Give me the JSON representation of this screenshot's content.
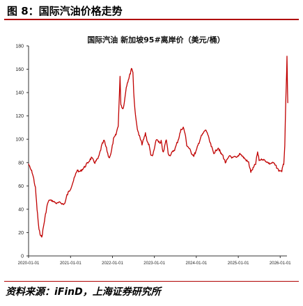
{
  "header": {
    "figure_label": "图 8：国际汽油价格走势"
  },
  "footer": {
    "source": "资料来源：iFinD，上海证券研究所"
  },
  "chart_data": {
    "type": "line",
    "title": "国际汽油 新加坡95#离岸价（美元/桶）",
    "xlabel": "",
    "ylabel": "",
    "grid": false,
    "legend": "none",
    "xlim": [
      "2020-01-01",
      "2026-03-01"
    ],
    "ylim": [
      0,
      180
    ],
    "yticks": [
      0,
      20,
      40,
      60,
      80,
      100,
      120,
      140,
      160,
      180
    ],
    "xticks": [
      "2020-01-01",
      "2021-01-01",
      "2022-01-01",
      "2023-01-01",
      "2024-01-01",
      "2025-01-01",
      "2026-01-01"
    ],
    "series": [
      {
        "color": "#c00000",
        "points": [
          [
            "2020-01-01",
            79
          ],
          [
            "2020-01-15",
            75
          ],
          [
            "2020-02-01",
            72
          ],
          [
            "2020-02-15",
            66
          ],
          [
            "2020-03-01",
            58
          ],
          [
            "2020-03-15",
            40
          ],
          [
            "2020-04-01",
            22
          ],
          [
            "2020-04-15",
            18
          ],
          [
            "2020-04-25",
            16
          ],
          [
            "2020-05-10",
            25
          ],
          [
            "2020-06-01",
            38
          ],
          [
            "2020-06-15",
            45
          ],
          [
            "2020-07-01",
            48
          ],
          [
            "2020-08-01",
            47
          ],
          [
            "2020-09-01",
            45
          ],
          [
            "2020-10-01",
            46
          ],
          [
            "2020-11-01",
            44
          ],
          [
            "2020-11-15",
            46
          ],
          [
            "2020-12-01",
            52
          ],
          [
            "2021-01-01",
            58
          ],
          [
            "2021-02-01",
            66
          ],
          [
            "2021-03-01",
            74
          ],
          [
            "2021-03-15",
            72
          ],
          [
            "2021-04-01",
            73
          ],
          [
            "2021-05-01",
            76
          ],
          [
            "2021-06-01",
            80
          ],
          [
            "2021-07-01",
            84
          ],
          [
            "2021-08-01",
            80
          ],
          [
            "2021-09-01",
            84
          ],
          [
            "2021-10-01",
            95
          ],
          [
            "2021-10-20",
            99
          ],
          [
            "2021-11-15",
            90
          ],
          [
            "2021-12-01",
            84
          ],
          [
            "2021-12-20",
            88
          ],
          [
            "2022-01-10",
            100
          ],
          [
            "2022-02-01",
            104
          ],
          [
            "2022-02-20",
            112
          ],
          [
            "2022-03-08",
            153
          ],
          [
            "2022-03-15",
            130
          ],
          [
            "2022-04-01",
            126
          ],
          [
            "2022-04-15",
            132
          ],
          [
            "2022-05-01",
            145
          ],
          [
            "2022-05-15",
            150
          ],
          [
            "2022-06-01",
            155
          ],
          [
            "2022-06-15",
            161
          ],
          [
            "2022-06-28",
            158
          ],
          [
            "2022-07-05",
            140
          ],
          [
            "2022-07-20",
            120
          ],
          [
            "2022-08-01",
            112
          ],
          [
            "2022-08-15",
            105
          ],
          [
            "2022-09-01",
            100
          ],
          [
            "2022-09-15",
            96
          ],
          [
            "2022-10-01",
            100
          ],
          [
            "2022-10-15",
            105
          ],
          [
            "2022-11-01",
            98
          ],
          [
            "2022-11-15",
            95
          ],
          [
            "2022-12-01",
            87
          ],
          [
            "2022-12-15",
            85
          ],
          [
            "2023-01-01",
            92
          ],
          [
            "2023-01-20",
            100
          ],
          [
            "2023-02-01",
            99
          ],
          [
            "2023-02-20",
            96
          ],
          [
            "2023-03-01",
            98
          ],
          [
            "2023-03-20",
            88
          ],
          [
            "2023-04-01",
            94
          ],
          [
            "2023-04-15",
            100
          ],
          [
            "2023-05-01",
            88
          ],
          [
            "2023-05-15",
            86
          ],
          [
            "2023-06-01",
            88
          ],
          [
            "2023-07-01",
            92
          ],
          [
            "2023-08-01",
            101
          ],
          [
            "2023-08-20",
            108
          ],
          [
            "2023-09-10",
            110
          ],
          [
            "2023-09-25",
            105
          ],
          [
            "2023-10-10",
            95
          ],
          [
            "2023-11-01",
            92
          ],
          [
            "2023-11-20",
            88
          ],
          [
            "2023-12-10",
            86
          ],
          [
            "2024-01-01",
            90
          ],
          [
            "2024-01-20",
            96
          ],
          [
            "2024-02-10",
            102
          ],
          [
            "2024-03-01",
            105
          ],
          [
            "2024-03-20",
            108
          ],
          [
            "2024-04-05",
            106
          ],
          [
            "2024-04-20",
            100
          ],
          [
            "2024-05-10",
            94
          ],
          [
            "2024-06-01",
            88
          ],
          [
            "2024-06-20",
            90
          ],
          [
            "2024-07-10",
            93
          ],
          [
            "2024-08-01",
            88
          ],
          [
            "2024-08-20",
            86
          ],
          [
            "2024-09-10",
            80
          ],
          [
            "2024-10-01",
            83
          ],
          [
            "2024-10-20",
            86
          ],
          [
            "2024-11-10",
            84
          ],
          [
            "2024-12-01",
            85
          ],
          [
            "2024-12-20",
            84
          ],
          [
            "2025-01-15",
            88
          ],
          [
            "2025-02-01",
            86
          ],
          [
            "2025-03-01",
            83
          ],
          [
            "2025-04-01",
            80
          ],
          [
            "2025-04-20",
            72
          ],
          [
            "2025-05-10",
            75
          ],
          [
            "2025-06-01",
            79
          ],
          [
            "2025-06-18",
            89
          ],
          [
            "2025-07-01",
            82
          ],
          [
            "2025-08-01",
            83
          ],
          [
            "2025-09-01",
            81
          ],
          [
            "2025-10-01",
            79
          ],
          [
            "2025-11-01",
            80
          ],
          [
            "2025-12-01",
            76
          ],
          [
            "2025-12-20",
            73
          ],
          [
            "2026-01-15",
            73
          ],
          [
            "2026-02-01",
            79
          ],
          [
            "2026-02-10",
            95
          ],
          [
            "2026-02-18",
            130
          ],
          [
            "2026-02-24",
            150
          ],
          [
            "2026-03-01",
            170
          ],
          [
            "2026-03-05",
            145
          ],
          [
            "2026-03-08",
            131
          ]
        ]
      }
    ]
  }
}
